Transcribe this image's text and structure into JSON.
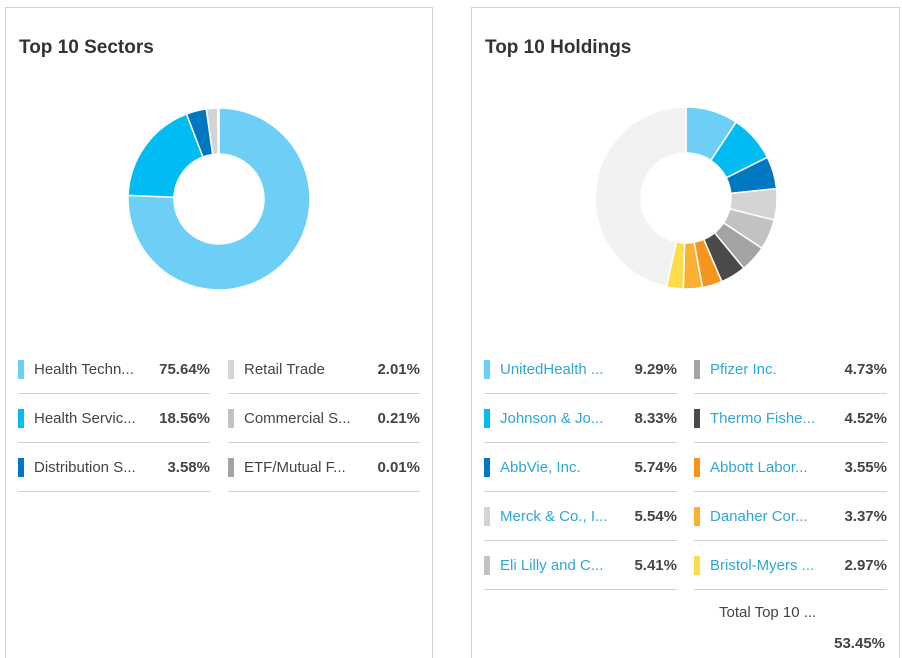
{
  "sectors": {
    "title": "Top 10 Sectors",
    "items": [
      {
        "label": "Health Techn...",
        "value": "75.64%",
        "pct": 75.64,
        "color": "#6dcff6"
      },
      {
        "label": "Health Servic...",
        "value": "18.56%",
        "pct": 18.56,
        "color": "#00bcf2"
      },
      {
        "label": "Distribution S...",
        "value": "3.58%",
        "pct": 3.58,
        "color": "#0078c1"
      },
      {
        "label": "Retail Trade",
        "value": "2.01%",
        "pct": 2.01,
        "color": "#d4d4d4"
      },
      {
        "label": "Commercial S...",
        "value": "0.21%",
        "pct": 0.21,
        "color": "#c2c2c2"
      },
      {
        "label": "ETF/Mutual F...",
        "value": "0.01%",
        "pct": 0.01,
        "color": "#a3a3a3"
      }
    ]
  },
  "holdings": {
    "title": "Top 10 Holdings",
    "items": [
      {
        "label": "UnitedHealth ...",
        "value": "9.29%",
        "pct": 9.29,
        "color": "#6dcff6"
      },
      {
        "label": "Johnson & Jo...",
        "value": "8.33%",
        "pct": 8.33,
        "color": "#00bcf2"
      },
      {
        "label": "AbbVie, Inc.",
        "value": "5.74%",
        "pct": 5.74,
        "color": "#0078c1"
      },
      {
        "label": "Merck & Co., I...",
        "value": "5.54%",
        "pct": 5.54,
        "color": "#d4d4d4"
      },
      {
        "label": "Eli Lilly and C...",
        "value": "5.41%",
        "pct": 5.41,
        "color": "#c2c2c2"
      },
      {
        "label": "Pfizer Inc.",
        "value": "4.73%",
        "pct": 4.73,
        "color": "#a3a3a3"
      },
      {
        "label": "Thermo Fishe...",
        "value": "4.52%",
        "pct": 4.52,
        "color": "#4a4a4a"
      },
      {
        "label": "Abbott Labor...",
        "value": "3.55%",
        "pct": 3.55,
        "color": "#f7941d"
      },
      {
        "label": "Danaher Cor...",
        "value": "3.37%",
        "pct": 3.37,
        "color": "#fbb034"
      },
      {
        "label": "Bristol-Myers ...",
        "value": "2.97%",
        "pct": 2.97,
        "color": "#fddc4c"
      }
    ],
    "remainder_color": "#f2f2f2",
    "total_label": "Total Top 10 ...",
    "total_value": "53.45%"
  }
}
